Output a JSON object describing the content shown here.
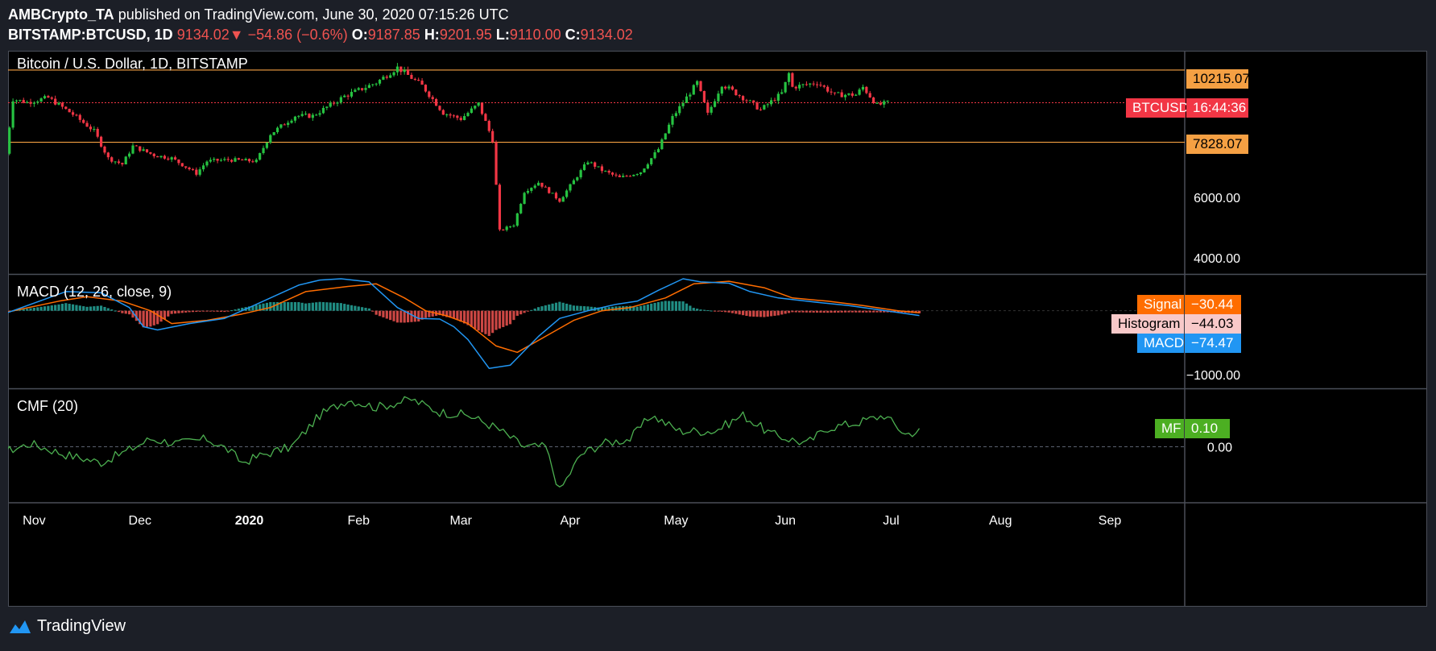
{
  "header": {
    "author": "AMBCrypto_TA",
    "published_text": "published on TradingView.com, June 30, 2020 07:15:26 UTC",
    "symbol": "BITSTAMP:BTCUSD, 1D",
    "last": "9134.02",
    "change": "−54.86 (−0.6%)",
    "o_label": "O:",
    "o": "9187.85",
    "h_label": "H:",
    "h": "9201.95",
    "l_label": "L:",
    "l": "9110.00",
    "c_label": "C:",
    "c": "9134.02"
  },
  "panes": {
    "price_title": "Bitcoin / U.S. Dollar, 1D, BITSTAMP",
    "macd_title": "MACD (12, 26, close, 9)",
    "cmf_title": "CMF (20)"
  },
  "tags": {
    "resistance": "10215.07",
    "support": "7828.07",
    "btc_symbol": "BTCUSD",
    "countdown": "16:44:36",
    "signal_label": "Signal",
    "signal_value": "−30.44",
    "histogram_label": "Histogram",
    "histogram_value": "−44.03",
    "macd_label": "MACD",
    "macd_value": "−74.47",
    "mf_label": "MF",
    "mf_value": "0.10"
  },
  "footer": {
    "brand": "TradingView"
  },
  "colors": {
    "up": "#26a69a",
    "down": "#ef5350",
    "candle_up": "#26c241",
    "candle_down": "#f23645",
    "level": "#f5a043",
    "macd": "#2196f3",
    "signal": "#ff6d00",
    "cmf": "#4caf50",
    "price_tag": "#f23645",
    "mf_tag": "#4caf22"
  },
  "chart_data": [
    {
      "type": "candlestick",
      "title": "Bitcoin / U.S. Dollar, 1D, BITSTAMP",
      "x_ticks": [
        "Nov",
        "Dec",
        "2020",
        "Feb",
        "Mar",
        "Apr",
        "May",
        "Jun",
        "Jul",
        "Aug",
        "Sep"
      ],
      "y_ticks": [
        4000,
        6000,
        10000
      ],
      "y_tick_labels": [
        "4000.00",
        "6000.00"
      ],
      "ylim": [
        3500,
        10800
      ],
      "levels": [
        10215.07,
        7828.07
      ],
      "last_price": 9134.02,
      "close_path": [
        {
          "date": "2019-10-24",
          "close": 7450
        },
        {
          "date": "2019-10-26",
          "close": 9250
        },
        {
          "date": "2019-10-30",
          "close": 9150
        },
        {
          "date": "2019-11-05",
          "close": 9300
        },
        {
          "date": "2019-11-12",
          "close": 8750
        },
        {
          "date": "2019-11-18",
          "close": 8200
        },
        {
          "date": "2019-11-22",
          "close": 7300
        },
        {
          "date": "2019-11-26",
          "close": 7100
        },
        {
          "date": "2019-11-29",
          "close": 7700
        },
        {
          "date": "2019-12-05",
          "close": 7400
        },
        {
          "date": "2019-12-10",
          "close": 7300
        },
        {
          "date": "2019-12-17",
          "close": 6800
        },
        {
          "date": "2019-12-20",
          "close": 7200
        },
        {
          "date": "2019-12-26",
          "close": 7250
        },
        {
          "date": "2020-01-03",
          "close": 7200
        },
        {
          "date": "2020-01-07",
          "close": 8100
        },
        {
          "date": "2020-01-14",
          "close": 8700
        },
        {
          "date": "2020-01-19",
          "close": 8700
        },
        {
          "date": "2020-01-28",
          "close": 9350
        },
        {
          "date": "2020-02-06",
          "close": 9800
        },
        {
          "date": "2020-02-12",
          "close": 10300
        },
        {
          "date": "2020-02-19",
          "close": 9700
        },
        {
          "date": "2020-02-25",
          "close": 8800
        },
        {
          "date": "2020-03-01",
          "close": 8600
        },
        {
          "date": "2020-03-06",
          "close": 9100
        },
        {
          "date": "2020-03-10",
          "close": 7900
        },
        {
          "date": "2020-03-12",
          "close": 4900
        },
        {
          "date": "2020-03-16",
          "close": 5100
        },
        {
          "date": "2020-03-19",
          "close": 6200
        },
        {
          "date": "2020-03-23",
          "close": 6500
        },
        {
          "date": "2020-03-29",
          "close": 5900
        },
        {
          "date": "2020-04-06",
          "close": 7200
        },
        {
          "date": "2020-04-10",
          "close": 6900
        },
        {
          "date": "2020-04-15",
          "close": 6650
        },
        {
          "date": "2020-04-21",
          "close": 6850
        },
        {
          "date": "2020-04-26",
          "close": 7600
        },
        {
          "date": "2020-04-30",
          "close": 8650
        },
        {
          "date": "2020-05-07",
          "close": 9800
        },
        {
          "date": "2020-05-10",
          "close": 8750
        },
        {
          "date": "2020-05-14",
          "close": 9750
        },
        {
          "date": "2020-05-22",
          "close": 9150
        },
        {
          "date": "2020-05-25",
          "close": 8900
        },
        {
          "date": "2020-05-31",
          "close": 9450
        },
        {
          "date": "2020-06-02",
          "close": 10100
        },
        {
          "date": "2020-06-03",
          "close": 9650
        },
        {
          "date": "2020-06-10",
          "close": 9800
        },
        {
          "date": "2020-06-15",
          "close": 9400
        },
        {
          "date": "2020-06-21",
          "close": 9400
        },
        {
          "date": "2020-06-23",
          "close": 9650
        },
        {
          "date": "2020-06-27",
          "close": 9050
        },
        {
          "date": "2020-06-30",
          "close": 9134
        }
      ]
    },
    {
      "type": "line",
      "title": "MACD (12, 26, close, 9)",
      "y_tick_labels": [
        "−1000.00"
      ],
      "ylim": [
        -1200,
        550
      ],
      "series": [
        {
          "name": "MACD",
          "values": [
            [
              -10,
              -100
            ],
            [
              10,
              300
            ],
            [
              20,
              280
            ],
            [
              28,
              50
            ],
            [
              32,
              -250
            ],
            [
              36,
              -300
            ],
            [
              45,
              -200
            ],
            [
              55,
              -120
            ],
            [
              62,
              50
            ],
            [
              70,
              250
            ],
            [
              76,
              400
            ],
            [
              82,
              480
            ],
            [
              88,
              500
            ],
            [
              96,
              450
            ],
            [
              104,
              50
            ],
            [
              110,
              -120
            ],
            [
              116,
              -130
            ],
            [
              120,
              -250
            ],
            [
              124,
              -450
            ],
            [
              130,
              -900
            ],
            [
              136,
              -850
            ],
            [
              144,
              -400
            ],
            [
              150,
              -120
            ],
            [
              158,
              0
            ],
            [
              166,
              100
            ],
            [
              172,
              150
            ],
            [
              178,
              320
            ],
            [
              185,
              500
            ],
            [
              190,
              450
            ],
            [
              198,
              430
            ],
            [
              204,
              300
            ],
            [
              212,
              200
            ],
            [
              220,
              150
            ],
            [
              232,
              80
            ],
            [
              240,
              20
            ],
            [
              252,
              -74.47
            ]
          ]
        },
        {
          "name": "Signal",
          "values": [
            [
              -10,
              -60
            ],
            [
              8,
              150
            ],
            [
              16,
              220
            ],
            [
              26,
              150
            ],
            [
              34,
              0
            ],
            [
              40,
              -200
            ],
            [
              50,
              -150
            ],
            [
              60,
              -50
            ],
            [
              68,
              50
            ],
            [
              78,
              300
            ],
            [
              90,
              380
            ],
            [
              98,
              420
            ],
            [
              106,
              200
            ],
            [
              112,
              0
            ],
            [
              118,
              -80
            ],
            [
              124,
              -200
            ],
            [
              132,
              -550
            ],
            [
              138,
              -650
            ],
            [
              146,
              -400
            ],
            [
              154,
              -150
            ],
            [
              162,
              0
            ],
            [
              170,
              50
            ],
            [
              180,
              200
            ],
            [
              188,
              420
            ],
            [
              198,
              460
            ],
            [
              208,
              360
            ],
            [
              216,
              200
            ],
            [
              226,
              150
            ],
            [
              236,
              80
            ],
            [
              246,
              0
            ],
            [
              252,
              -30.44
            ]
          ]
        }
      ],
      "histogram_last": -44.03
    },
    {
      "type": "line",
      "title": "CMF (20)",
      "y_tick_labels": [
        "0.00"
      ],
      "ylim": [
        -0.35,
        0.36
      ],
      "series": [
        {
          "name": "CMF",
          "values": [
            [
              -10,
              -0.05
            ],
            [
              0,
              0.02
            ],
            [
              10,
              -0.05
            ],
            [
              20,
              -0.1
            ],
            [
              28,
              -0.02
            ],
            [
              34,
              0.05
            ],
            [
              42,
              0.02
            ],
            [
              50,
              0.05
            ],
            [
              56,
              -0.02
            ],
            [
              60,
              -0.1
            ],
            [
              66,
              -0.05
            ],
            [
              74,
              0.0
            ],
            [
              82,
              0.2
            ],
            [
              90,
              0.3
            ],
            [
              98,
              0.25
            ],
            [
              108,
              0.3
            ],
            [
              116,
              0.22
            ],
            [
              124,
              0.2
            ],
            [
              132,
              0.12
            ],
            [
              140,
              0.0
            ],
            [
              146,
              0.0
            ],
            [
              150,
              -0.28
            ],
            [
              156,
              -0.05
            ],
            [
              162,
              0.02
            ],
            [
              170,
              0.05
            ],
            [
              176,
              0.2
            ],
            [
              184,
              0.1
            ],
            [
              194,
              0.1
            ],
            [
              202,
              0.2
            ],
            [
              210,
              0.08
            ],
            [
              220,
              0.02
            ],
            [
              226,
              0.12
            ],
            [
              234,
              0.15
            ],
            [
              242,
              0.2
            ],
            [
              248,
              0.08
            ],
            [
              252,
              0.1
            ]
          ]
        }
      ],
      "last_value": 0.1
    }
  ]
}
